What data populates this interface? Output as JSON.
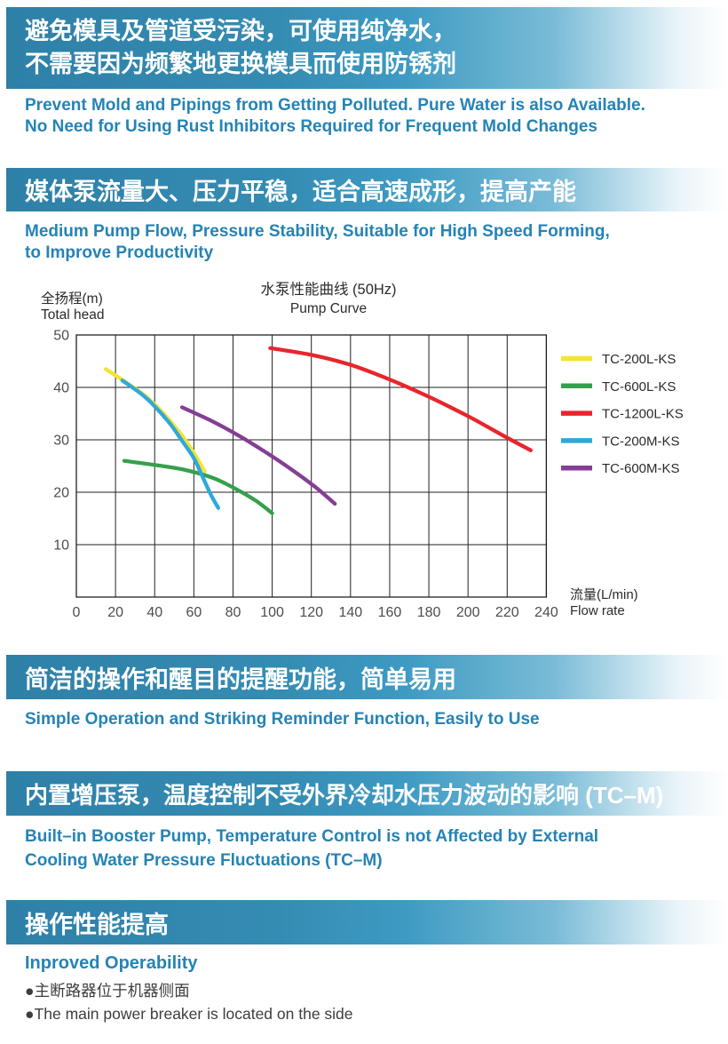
{
  "page": {
    "sections": [
      {
        "banner_lines": [
          "避免模具及管道受污染，可使用纯净水，",
          "不需要因为频繁地更换模具而使用防锈剂"
        ],
        "subtitle_lines": [
          "Prevent Mold and Pipings from Getting Polluted. Pure Water is also Available.",
          "No Need for Using Rust Inhibitors Required for Frequent Mold Changes"
        ]
      },
      {
        "banner_lines": [
          "媒体泵流量大、压力平稳，适合高速成形，提高产能"
        ],
        "subtitle_lines": [
          "Medium Pump Flow, Pressure Stability, Suitable for High Speed Forming,",
          "to Improve Productivity"
        ]
      },
      {
        "banner_lines": [
          "简洁的操作和醒目的提醒功能，简单易用"
        ],
        "subtitle_lines": [
          "Simple Operation and Striking Reminder Function, Easily to Use"
        ]
      },
      {
        "banner_lines": [
          "内置增压泵，温度控制不受外界冷却水压力波动的影响 (TC–M)"
        ],
        "subtitle_lines": [
          "Built–in Booster Pump, Temperature Control is not Affected by External",
          "Cooling Water Pressure Fluctuations (TC–M)"
        ]
      },
      {
        "banner_lines": [
          "操作性能提高"
        ],
        "subtitle_lines": [
          "Inproved Operability"
        ],
        "bullets": [
          "●主断路器位于机器侧面",
          "●The main power breaker is located on the side"
        ]
      }
    ],
    "colors": {
      "banner_gradient_start": "#2E80A7",
      "banner_gradient_end": "#FFFFFF",
      "subtitle_blue": "#2583B5",
      "body_text": "#3D3D3F"
    }
  },
  "chart_data": {
    "type": "line",
    "title": "水泵性能曲线 (50Hz)",
    "subtitle": "Pump Curve",
    "ylabel": "全扬程(m)",
    "ylabel_en": "Total head",
    "xlabel": "流量(L/min)",
    "xlabel_en": "Flow rate",
    "xlim": [
      0,
      240
    ],
    "ylim": [
      0,
      50
    ],
    "x_ticks": [
      0,
      20,
      40,
      60,
      80,
      100,
      120,
      140,
      160,
      180,
      200,
      220,
      240
    ],
    "y_ticks": [
      10,
      20,
      30,
      40,
      50
    ],
    "x_grid_step": 20,
    "y_grid_step": 10,
    "grid": true,
    "legend_position": "right",
    "grid_color": "#231F20",
    "tick_color": "#4D4D4F",
    "legend_text_color": "#2B2B2B",
    "series": [
      {
        "name": "TC-200L-KS",
        "color": "#F2E434",
        "points": [
          [
            15,
            43.5
          ],
          [
            24,
            41.3
          ],
          [
            33,
            39.0
          ],
          [
            40,
            36.8
          ],
          [
            47,
            34.0
          ],
          [
            54,
            30.8
          ],
          [
            60,
            27.5
          ],
          [
            65.5,
            24.0
          ]
        ]
      },
      {
        "name": "TC-600L-KS",
        "color": "#35A04A",
        "points": [
          [
            24.5,
            26.0
          ],
          [
            40,
            25.2
          ],
          [
            55,
            24.3
          ],
          [
            70,
            22.7
          ],
          [
            82,
            20.5
          ],
          [
            92,
            18.3
          ],
          [
            100,
            16.0
          ]
        ]
      },
      {
        "name": "TC-1200L-KS",
        "color": "#E8252C",
        "points": [
          [
            99,
            47.5
          ],
          [
            120,
            46.2
          ],
          [
            140,
            44.3
          ],
          [
            160,
            41.5
          ],
          [
            180,
            38.2
          ],
          [
            200,
            34.5
          ],
          [
            218,
            30.8
          ],
          [
            232,
            28.0
          ]
        ]
      },
      {
        "name": "TC-200M-KS",
        "color": "#2FA8DC",
        "points": [
          [
            23.5,
            41.3
          ],
          [
            33,
            38.8
          ],
          [
            40,
            36.4
          ],
          [
            48,
            33.0
          ],
          [
            54,
            29.8
          ],
          [
            60,
            26.5
          ],
          [
            65,
            22.5
          ],
          [
            69,
            19.3
          ],
          [
            72.5,
            17.0
          ]
        ]
      },
      {
        "name": "TC-600M-KS",
        "color": "#843E95",
        "points": [
          [
            54,
            36.2
          ],
          [
            68,
            33.8
          ],
          [
            82,
            31.0
          ],
          [
            96,
            27.8
          ],
          [
            110,
            24.3
          ],
          [
            122,
            21.0
          ],
          [
            132,
            17.8
          ]
        ]
      }
    ]
  }
}
